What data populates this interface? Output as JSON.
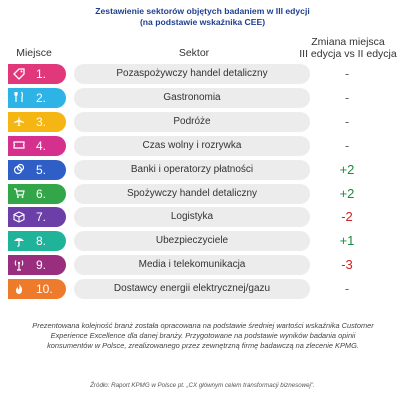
{
  "title_line1": "Zestawienie sektorów objętych badaniem w III edycji",
  "title_line2": "(na podstawie wskaźnika CEE)",
  "headers": {
    "rank": "Miejsce",
    "sector": "Sektor",
    "change_line1": "Zmiana miejsca",
    "change_line2": "III edycja vs II edycja"
  },
  "rows": [
    {
      "rank": "1.",
      "sector": "Pozaspożywczy handel detaliczny",
      "change": "-",
      "color": "#e0387a",
      "icon": "tag-icon"
    },
    {
      "rank": "2.",
      "sector": "Gastronomia",
      "change": "-",
      "color": "#2eb3e6",
      "icon": "cutlery-icon"
    },
    {
      "rank": "3.",
      "sector": "Podróże",
      "change": "-",
      "color": "#f5b512",
      "icon": "airplane-icon"
    },
    {
      "rank": "4.",
      "sector": "Czas wolny i rozrywka",
      "change": "-",
      "color": "#d6308f",
      "icon": "ticket-icon"
    },
    {
      "rank": "5.",
      "sector": "Banki i operatorzy płatności",
      "change": "+2",
      "color": "#2f5fc6",
      "icon": "coins-icon"
    },
    {
      "rank": "6.",
      "sector": "Spożywczy handel detaliczny",
      "change": "+2",
      "color": "#34a64a",
      "icon": "cart-icon"
    },
    {
      "rank": "7.",
      "sector": "Logistyka",
      "change": "-2",
      "color": "#6b3ea8",
      "icon": "box-icon"
    },
    {
      "rank": "8.",
      "sector": "Ubezpieczyciele",
      "change": "+1",
      "color": "#1fb39a",
      "icon": "umbrella-icon"
    },
    {
      "rank": "9.",
      "sector": "Media i telekomunikacja",
      "change": "-3",
      "color": "#9a2e7e",
      "icon": "antenna-icon"
    },
    {
      "rank": "10.",
      "sector": "Dostawcy energii elektrycznej/gazu",
      "change": "-",
      "color": "#ee7b2c",
      "icon": "flame-icon"
    }
  ],
  "note": "Prezentowana kolejność branż została opracowana na podstawie średniej wartości wskaźnika Customer Experience Excellence dla danej branży. Przygotowane na podstawie wyników badania opinii konsumentów w Polsce, zrealizowanego przez zewnętrzną firmę badawczą na zlecenie KPMG.",
  "source": "Źródło: Raport KPMG w Polsce pt. „CX głównym celem transformacji biznesowej\"."
}
